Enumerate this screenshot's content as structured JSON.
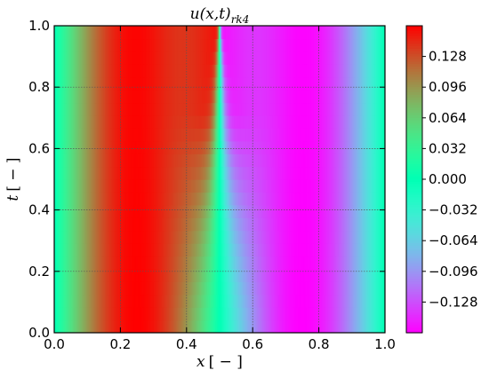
{
  "chart_data": {
    "type": "heatmap",
    "title_main": "u(x,t)",
    "title_sub": "rk4",
    "xlabel_var": "x",
    "xlabel_unit": "[ − ]",
    "ylabel_var": "t",
    "ylabel_unit": "[ − ]",
    "xlim": [
      0.0,
      1.0
    ],
    "ylim": [
      0.0,
      1.0
    ],
    "x_ticks": [
      "0.0",
      "0.2",
      "0.4",
      "0.6",
      "0.8",
      "1.0"
    ],
    "y_ticks": [
      "0.0",
      "0.2",
      "0.4",
      "0.6",
      "0.8",
      "1.0"
    ],
    "grid": true,
    "colormap": "rainbow",
    "value_range": [
      -0.16,
      0.16
    ],
    "colorbar_ticks": [
      "0.128",
      "0.096",
      "0.064",
      "0.032",
      "0.000",
      "−0.032",
      "−0.064",
      "−0.096",
      "−0.128"
    ],
    "colorbar_values": [
      0.128,
      0.096,
      0.064,
      0.032,
      0.0,
      -0.032,
      -0.064,
      -0.096,
      -0.128
    ],
    "field": "u(x,t) ≈ 0.16·sin(2πx) steepening into a shock near x = 0.5 as t increases"
  }
}
